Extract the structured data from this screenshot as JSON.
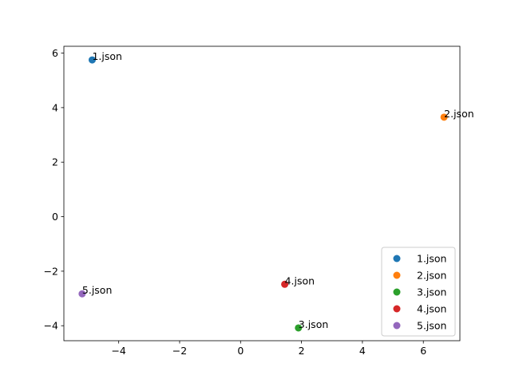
{
  "chart_data": {
    "type": "scatter",
    "title": "",
    "xlabel": "",
    "ylabel": "",
    "xlim": [
      -5.8,
      7.2
    ],
    "ylim": [
      -4.55,
      6.25
    ],
    "grid": false,
    "legend_position": "lower right",
    "x_ticks": [
      {
        "value": -4,
        "label": "−4"
      },
      {
        "value": -2,
        "label": "−2"
      },
      {
        "value": 0,
        "label": "0"
      },
      {
        "value": 2,
        "label": "2"
      },
      {
        "value": 4,
        "label": "4"
      },
      {
        "value": 6,
        "label": "6"
      }
    ],
    "y_ticks": [
      {
        "value": -4,
        "label": "−4"
      },
      {
        "value": -2,
        "label": "−2"
      },
      {
        "value": 0,
        "label": "0"
      },
      {
        "value": 2,
        "label": "2"
      },
      {
        "value": 4,
        "label": "4"
      },
      {
        "value": 6,
        "label": "6"
      }
    ],
    "series": [
      {
        "name": "1.json",
        "color": "#1f77b4",
        "x": -4.87,
        "y": 5.75,
        "label": "1.json"
      },
      {
        "name": "2.json",
        "color": "#ff7f0e",
        "x": 6.68,
        "y": 3.65,
        "label": "2.json"
      },
      {
        "name": "3.json",
        "color": "#2ca02c",
        "x": 1.9,
        "y": -4.08,
        "label": "3.json"
      },
      {
        "name": "4.json",
        "color": "#d62728",
        "x": 1.45,
        "y": -2.48,
        "label": "4.json"
      },
      {
        "name": "5.json",
        "color": "#9467bd",
        "x": -5.2,
        "y": -2.83,
        "label": "5.json"
      }
    ]
  }
}
